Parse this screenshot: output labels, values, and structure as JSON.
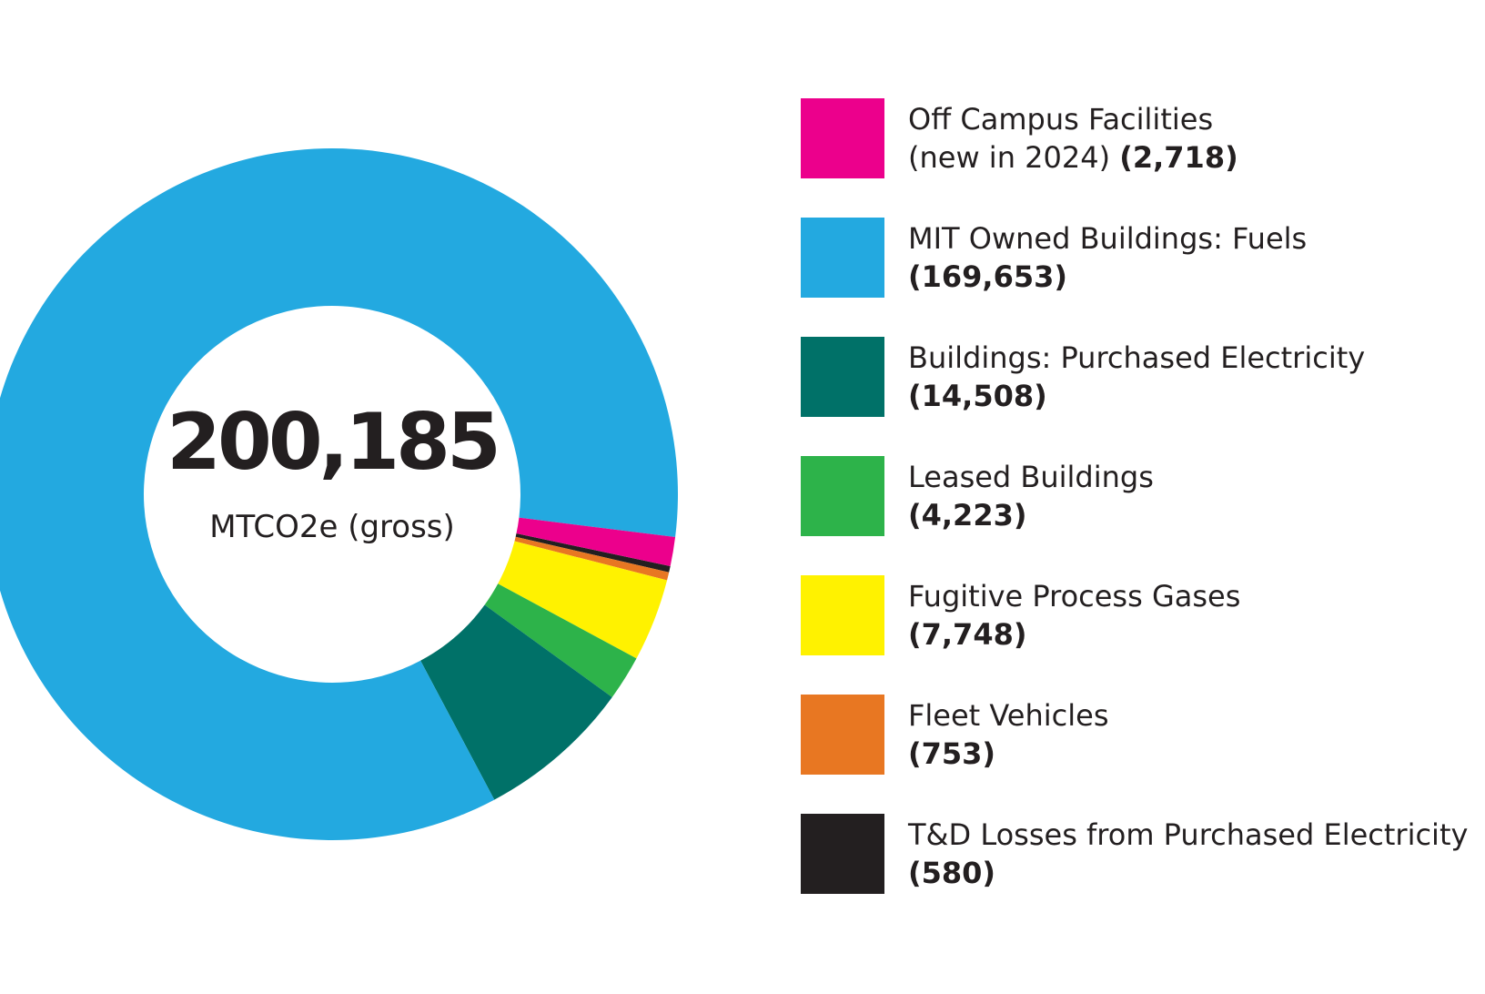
{
  "chart_data": {
    "type": "pie",
    "variant": "donut",
    "total": 200185,
    "total_label": "200,185",
    "unit_label": "MTCO2e (gross)",
    "legend_position": "right",
    "series": [
      {
        "name": "Off Campus Facilities",
        "name_line2": "(new in 2024)",
        "value": 2718,
        "value_label": "(2,718)",
        "color": "#ec008c"
      },
      {
        "name": "MIT Owned Buildings: Fuels",
        "value": 169653,
        "value_label": "(169,653)",
        "color": "#23a9e0"
      },
      {
        "name": "Buildings: Purchased Electricity",
        "value": 14508,
        "value_label": "(14,508)",
        "color": "#007168"
      },
      {
        "name": "Leased Buildings",
        "value": 4223,
        "value_label": "(4,223)",
        "color": "#2db34a"
      },
      {
        "name": "Fugitive Process Gases",
        "value": 7748,
        "value_label": "(7,748)",
        "color": "#fff200"
      },
      {
        "name": "Fleet Vehicles",
        "value": 753,
        "value_label": "(753)",
        "color": "#e87722"
      },
      {
        "name": "T&D Losses from Purchased Electricity",
        "value": 580,
        "value_label": "(580)",
        "color": "#231f20"
      }
    ],
    "ring_order": [
      6,
      5,
      4,
      3,
      2,
      1,
      0
    ]
  }
}
